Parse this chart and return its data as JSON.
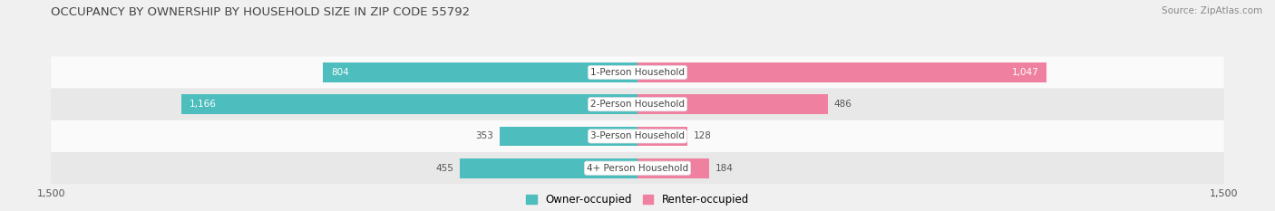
{
  "title": "OCCUPANCY BY OWNERSHIP BY HOUSEHOLD SIZE IN ZIP CODE 55792",
  "source": "Source: ZipAtlas.com",
  "categories": [
    "1-Person Household",
    "2-Person Household",
    "3-Person Household",
    "4+ Person Household"
  ],
  "owner_values": [
    804,
    1166,
    353,
    455
  ],
  "renter_values": [
    1047,
    486,
    128,
    184
  ],
  "owner_color": "#4DBDBD",
  "renter_color": "#F080A0",
  "axis_max": 1500,
  "bar_height": 0.62,
  "background_color": "#f0f0f0",
  "row_light": "#fafafa",
  "row_dark": "#e8e8e8",
  "legend_owner": "Owner-occupied",
  "legend_renter": "Renter-occupied",
  "label_dark": "#555555",
  "label_light": "#ffffff",
  "title_color": "#444444",
  "title_fontsize": 9.5,
  "source_fontsize": 7.5,
  "bar_label_fontsize": 7.5,
  "cat_label_fontsize": 7.5,
  "axis_label_fontsize": 8.0,
  "legend_fontsize": 8.5
}
